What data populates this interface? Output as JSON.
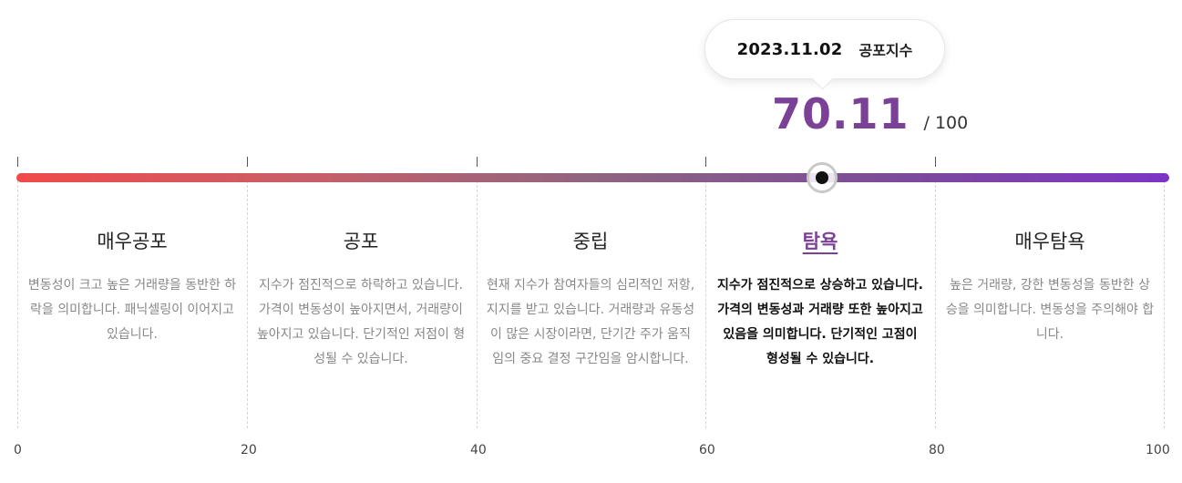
{
  "tooltip": {
    "date": "2023.11.02",
    "label": "공포지수"
  },
  "score": {
    "value": "70.11",
    "max": "/ 100"
  },
  "gauge": {
    "current_value": 70.11,
    "colors": {
      "start": "#f04a4a",
      "end": "#7d35c4",
      "accent": "#7b4196"
    }
  },
  "segments": [
    {
      "title": "매우공포",
      "description": "변동성이 크고 높은 거래량을 동반한 하락을 의미합니다. 패닉셀링이 이어지고 있습니다."
    },
    {
      "title": "공포",
      "description": "지수가 점진적으로 하락하고 있습니다. 가격이 변동성이 높아지면서, 거래량이 높아지고 있습니다. 단기적인 저점이 형성될 수 있습니다."
    },
    {
      "title": "중립",
      "description": "현재 지수가 참여자들의 심리적인 저항, 지지를 받고 있습니다. 거래량과 유동성이 많은 시장이라면, 단기간 주가 움직임의 중요 결정 구간임을 암시합니다."
    },
    {
      "title": "탐욕",
      "description": "지수가 점진적으로 상승하고 있습니다. 가격의 변동성과 거래량 또한 높아지고 있음을 의미합니다. 단기적인 고점이 형성될 수 있습니다.",
      "active": true
    },
    {
      "title": "매우탐욕",
      "description": "높은 거래량, 강한 변동성을 동반한 상승을 의미합니다. 변동성을 주의해야 합니다."
    }
  ],
  "axis": [
    "0",
    "20",
    "40",
    "60",
    "80",
    "100"
  ]
}
